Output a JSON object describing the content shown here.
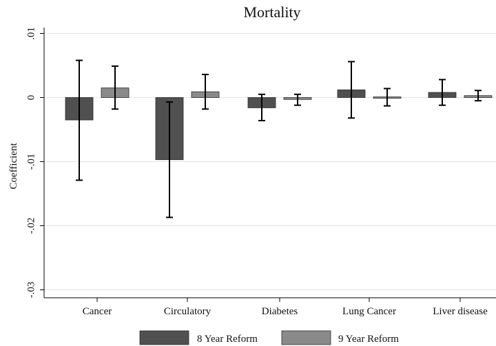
{
  "chart_data": {
    "type": "bar",
    "title": "Mortality",
    "ylabel": "Coefficient",
    "xlabel": "",
    "ylim": [
      -0.03,
      0.01
    ],
    "yticks": [
      0.01,
      0,
      -0.01,
      -0.02,
      -0.03
    ],
    "ytick_labels": [
      ".01",
      "0",
      "-.01",
      "-.02",
      "-.03"
    ],
    "grid": true,
    "legend_position": "bottom",
    "categories": [
      "Cancer",
      "Circulatory",
      "Diabetes",
      "Lung Cancer",
      "Liver disease"
    ],
    "series": [
      {
        "name": "8 Year Reform",
        "color": "#505050",
        "values": [
          -0.0035,
          -0.0097,
          -0.0016,
          0.0012,
          0.0008
        ],
        "ci_low": [
          -0.0129,
          -0.0187,
          -0.0036,
          -0.0032,
          -0.0012
        ],
        "ci_high": [
          0.0058,
          -0.0007,
          0.0005,
          0.0056,
          0.0028
        ]
      },
      {
        "name": "9 Year Reform",
        "color": "#8a8a8a",
        "values": [
          0.0015,
          0.0009,
          -0.0003,
          0.0001,
          0.0003
        ],
        "ci_low": [
          -0.0018,
          -0.0018,
          -0.0012,
          -0.0013,
          -0.0005
        ],
        "ci_high": [
          0.0049,
          0.0036,
          0.0005,
          0.0014,
          0.0011
        ]
      }
    ]
  }
}
